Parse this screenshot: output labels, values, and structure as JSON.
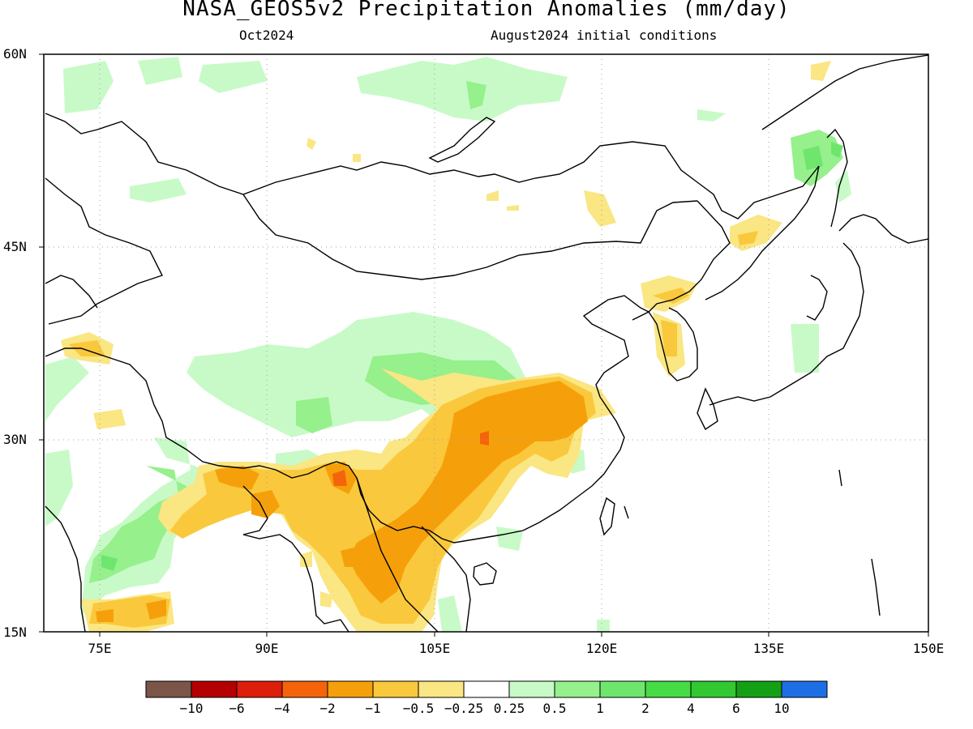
{
  "header": {
    "title": "NASA_GEOS5v2 Precipitation Anomalies (mm/day)",
    "valid_month": "Oct2024",
    "init_label": "August2024 initial conditions"
  },
  "map": {
    "lon_range": [
      70,
      150
    ],
    "lat_range": [
      15,
      60
    ],
    "lat_ticks": [
      {
        "value": 60,
        "label": "60N"
      },
      {
        "value": 45,
        "label": "45N"
      },
      {
        "value": 30,
        "label": "30N"
      },
      {
        "value": 15,
        "label": "15N"
      }
    ],
    "lon_ticks": [
      {
        "value": 75,
        "label": "75E"
      },
      {
        "value": 90,
        "label": "90E"
      },
      {
        "value": 105,
        "label": "105E"
      },
      {
        "value": 120,
        "label": "120E"
      },
      {
        "value": 135,
        "label": "135E"
      },
      {
        "value": 150,
        "label": "150E"
      }
    ],
    "grid": true,
    "coast_color": "#000000"
  },
  "colorbar": {
    "colors": [
      "#7a5548",
      "#b40000",
      "#dc1e0a",
      "#f5640a",
      "#f5a00a",
      "#fac83c",
      "#fae682",
      "#ffffff",
      "#c8fac8",
      "#96f08c",
      "#6ee66e",
      "#46dc46",
      "#32c832",
      "#14a014",
      "#1e6ee6"
    ],
    "labels": [
      "−10",
      "−6",
      "−4",
      "−2",
      "−1",
      "−0.5",
      "−0.25",
      "0.25",
      "0.5",
      "1",
      "2",
      "4",
      "6",
      "10"
    ]
  }
}
